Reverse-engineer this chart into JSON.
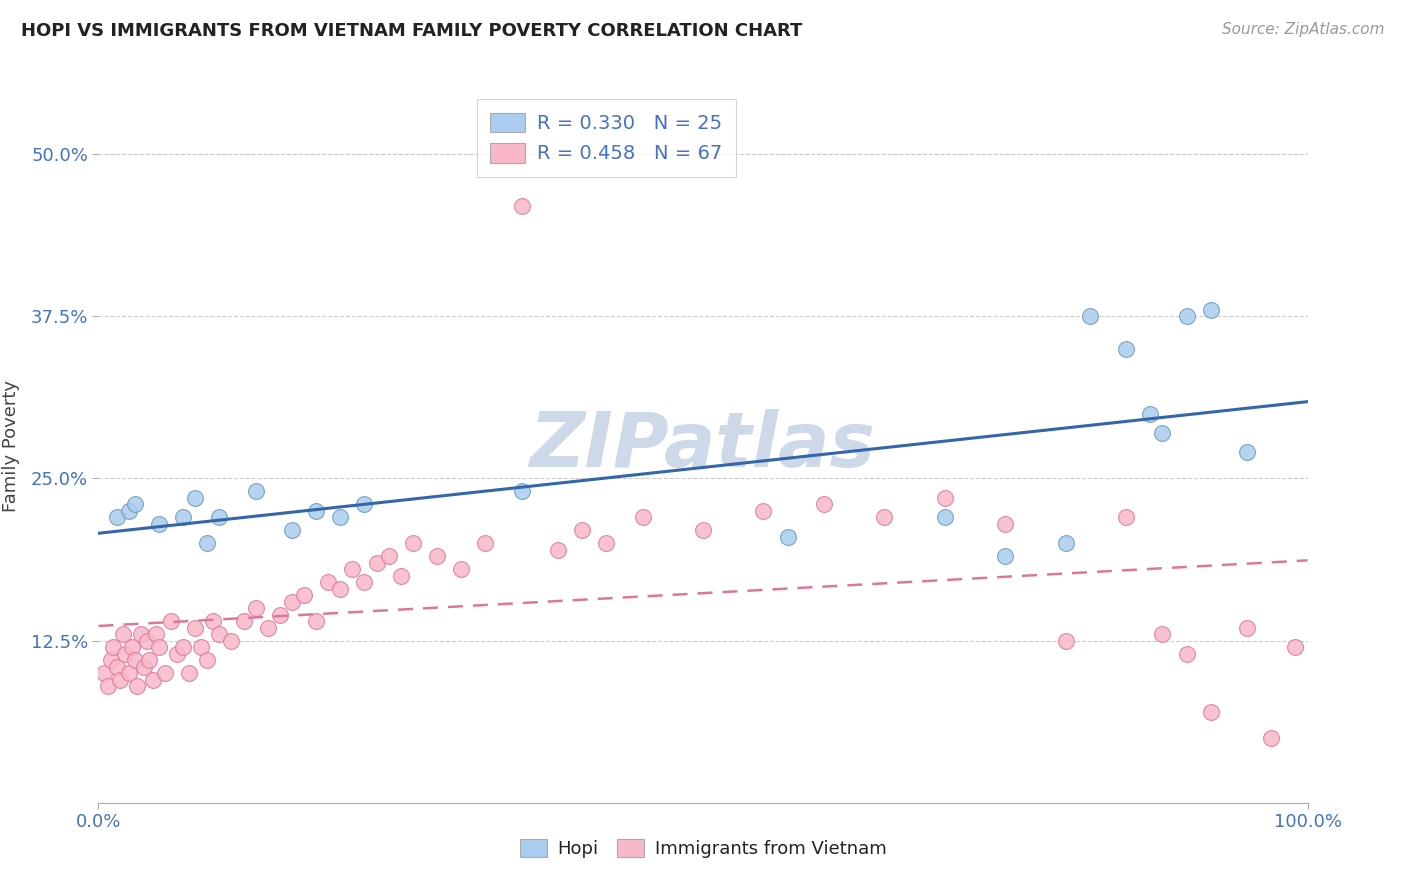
{
  "title": "HOPI VS IMMIGRANTS FROM VIETNAM FAMILY POVERTY CORRELATION CHART",
  "source": "Source: ZipAtlas.com",
  "ylabel": "Family Poverty",
  "xlim": [
    0,
    100
  ],
  "ylim": [
    0,
    55
  ],
  "hopi_R": 0.33,
  "hopi_N": 25,
  "vietnam_R": 0.458,
  "vietnam_N": 67,
  "hopi_color": "#aaccee",
  "hopi_edge_color": "#6699bb",
  "vietnam_color": "#f8b8c8",
  "vietnam_edge_color": "#dd7799",
  "trend_hopi_color": "#3366aa",
  "trend_vietnam_color": "#dd7799",
  "watermark_color": "#cdd8e8",
  "background_color": "#ffffff",
  "hopi_x": [
    1.5,
    2.5,
    3.0,
    5.0,
    7.0,
    8.0,
    9.0,
    10.0,
    13.0,
    16.0,
    18.0,
    20.0,
    22.0,
    35.0,
    57.0,
    70.0,
    75.0,
    80.0,
    82.0,
    85.0,
    87.0,
    88.0,
    90.0,
    92.0,
    95.0
  ],
  "hopi_y": [
    22.0,
    22.5,
    23.0,
    21.5,
    22.0,
    23.5,
    20.0,
    22.0,
    24.0,
    21.0,
    22.5,
    22.0,
    23.0,
    24.0,
    20.5,
    22.0,
    19.0,
    20.0,
    37.5,
    35.0,
    30.0,
    28.5,
    37.5,
    38.0,
    27.0
  ],
  "vietnam_x": [
    0.5,
    0.8,
    1.0,
    1.2,
    1.5,
    1.8,
    2.0,
    2.2,
    2.5,
    2.8,
    3.0,
    3.2,
    3.5,
    3.8,
    4.0,
    4.2,
    4.5,
    4.8,
    5.0,
    5.5,
    6.0,
    6.5,
    7.0,
    7.5,
    8.0,
    8.5,
    9.0,
    9.5,
    10.0,
    11.0,
    12.0,
    13.0,
    14.0,
    15.0,
    16.0,
    17.0,
    18.0,
    19.0,
    20.0,
    21.0,
    22.0,
    23.0,
    24.0,
    25.0,
    26.0,
    28.0,
    30.0,
    32.0,
    35.0,
    38.0,
    40.0,
    42.0,
    45.0,
    50.0,
    55.0,
    60.0,
    65.0,
    70.0,
    75.0,
    80.0,
    85.0,
    88.0,
    90.0,
    92.0,
    95.0,
    97.0,
    99.0
  ],
  "vietnam_y": [
    10.0,
    9.0,
    11.0,
    12.0,
    10.5,
    9.5,
    13.0,
    11.5,
    10.0,
    12.0,
    11.0,
    9.0,
    13.0,
    10.5,
    12.5,
    11.0,
    9.5,
    13.0,
    12.0,
    10.0,
    14.0,
    11.5,
    12.0,
    10.0,
    13.5,
    12.0,
    11.0,
    14.0,
    13.0,
    12.5,
    14.0,
    15.0,
    13.5,
    14.5,
    15.5,
    16.0,
    14.0,
    17.0,
    16.5,
    18.0,
    17.0,
    18.5,
    19.0,
    17.5,
    20.0,
    19.0,
    18.0,
    20.0,
    46.0,
    19.5,
    21.0,
    20.0,
    22.0,
    21.0,
    22.5,
    23.0,
    22.0,
    23.5,
    21.5,
    12.5,
    22.0,
    13.0,
    11.5,
    7.0,
    13.5,
    5.0,
    12.0
  ]
}
